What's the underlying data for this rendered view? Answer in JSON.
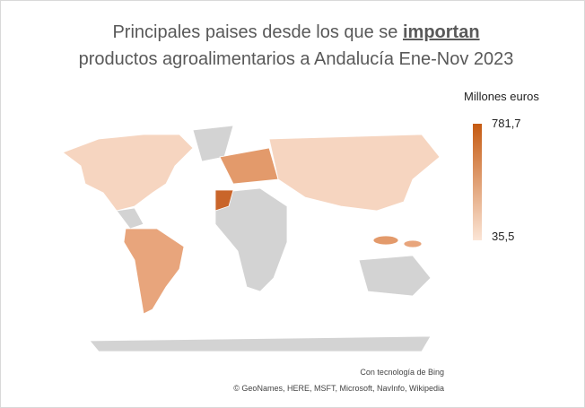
{
  "title": {
    "line1": "Principales paises desde los que se",
    "emphasis": "importan",
    "line2": "productos  agroalimentarios a Andalucía Ene-Nov 2023"
  },
  "legend": {
    "label": "Millones euros",
    "max": 781.7,
    "max_label": "781,7",
    "min": 35.5,
    "min_label": "35,5"
  },
  "attribution": [
    "Con tecnología de Bing",
    "© GeoNames, HERE, MSFT, Microsoft, NavInfo, Wikipedia"
  ]
}
